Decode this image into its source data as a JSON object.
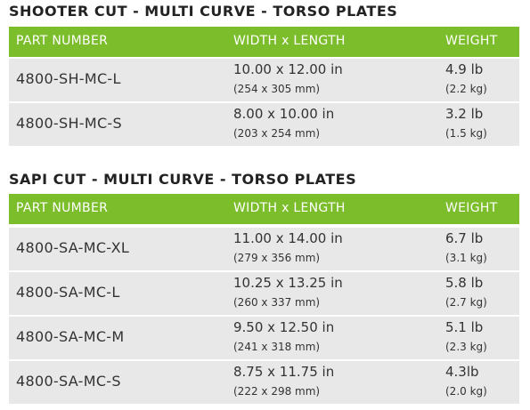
{
  "tables": [
    {
      "title": "SHOOTER CUT - MULTI CURVE - TORSO PLATES",
      "headers": [
        "PART NUMBER",
        "WIDTH x LENGTH",
        "WEIGHT"
      ],
      "rows": [
        [
          "4800-SH-MC-L",
          "10.00 x 12.00 in",
          "(254 x 305 mm)",
          "4.9 lb",
          "(2.2 kg)"
        ],
        [
          "4800-SH-MC-S",
          "8.00 x 10.00 in",
          "(203 x 254 mm)",
          "3.2 lb",
          "(1.5 kg)"
        ]
      ]
    },
    {
      "title": "SAPI CUT - MULTI CURVE - TORSO PLATES",
      "headers": [
        "PART NUMBER",
        "WIDTH x LENGTH",
        "WEIGHT"
      ],
      "rows": [
        [
          "4800-SA-MC-XL",
          "11.00 x 14.00 in",
          "(279 x 356 mm)",
          "6.7 lb",
          "(3.1 kg)"
        ],
        [
          "4800-SA-MC-L",
          "10.25 x 13.25 in",
          "(260 x 337 mm)",
          "5.8 lb",
          "(2.7 kg)"
        ],
        [
          "4800-SA-MC-M",
          "9.50 x 12.50 in",
          "(241 x 318 mm)",
          "5.1 lb",
          "(2.3 kg)"
        ],
        [
          "4800-SA-MC-S",
          "8.75 x 11.75 in",
          "(222 x 298 mm)",
          "4.3lb",
          "(2.0 kg)"
        ]
      ]
    }
  ]
}
